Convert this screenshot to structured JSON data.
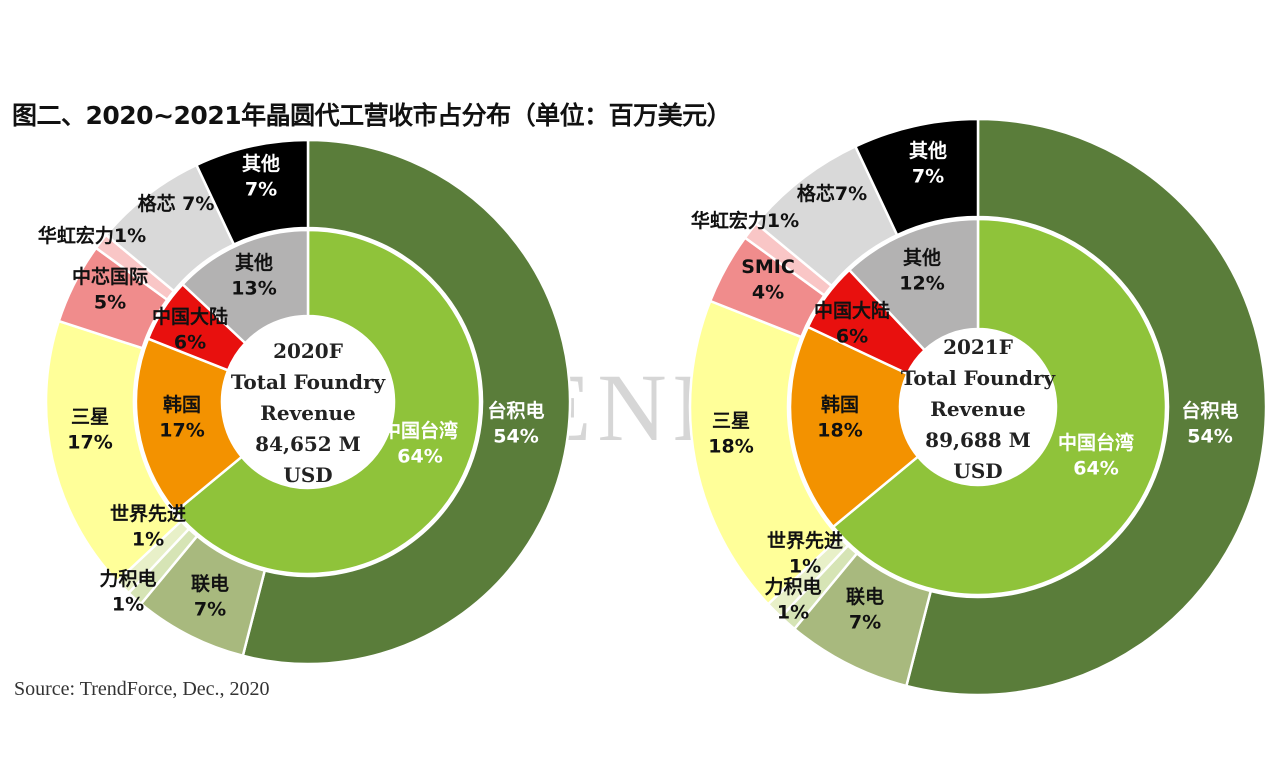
{
  "figure_title": "图二、2020~2021年晶圆代工营收市占分布（单位：百万美元）",
  "watermark": "TRENDFORCE",
  "source": "Source: TrendForce, Dec., 2020",
  "chart_data": [
    {
      "type": "donut",
      "center_lines": [
        "2020F",
        "Total Foundry",
        "Revenue",
        "84,652 M",
        "USD"
      ],
      "inner_ring": [
        {
          "name": "中国台湾",
          "value": 64,
          "label": "64%",
          "color": "#8fc33a"
        },
        {
          "name": "韩国",
          "value": 17,
          "label": "17%",
          "color": "#f39200"
        },
        {
          "name": "中国大陆",
          "value": 6,
          "label": "6%",
          "color": "#e8100e"
        },
        {
          "name": "其他",
          "value": 13,
          "label": "13%",
          "color": "#b3b2b2"
        }
      ],
      "outer_ring": [
        {
          "name": "台积电",
          "value": 54,
          "label": "54%",
          "color": "#5a7d3a"
        },
        {
          "name": "联电",
          "value": 7,
          "label": "7%",
          "color": "#a8b97e"
        },
        {
          "name": "力积电",
          "value": 1,
          "label": "1%",
          "color": "#d6e4b5"
        },
        {
          "name": "世界先进",
          "value": 1,
          "label": "1%",
          "color": "#e8f0c8"
        },
        {
          "name": "三星",
          "value": 17,
          "label": "17%",
          "color": "#ffff99"
        },
        {
          "name": "中芯国际",
          "value": 5,
          "label": "5%",
          "color": "#f08c8c"
        },
        {
          "name": "华虹宏力",
          "value": 1,
          "label": "1%",
          "color": "#f9c6c6"
        },
        {
          "name": "格芯",
          "value": 7,
          "label": "格芯 7%",
          "color": "#d9d9d9"
        },
        {
          "name": "其他",
          "value": 7,
          "label": "7%",
          "color": "#000000"
        }
      ]
    },
    {
      "type": "donut",
      "center_lines": [
        "2021F",
        "Total Foundry",
        "Revenue",
        "89,688 M",
        "USD"
      ],
      "inner_ring": [
        {
          "name": "中国台湾",
          "value": 64,
          "label": "64%",
          "color": "#8fc33a"
        },
        {
          "name": "韩国",
          "value": 18,
          "label": "18%",
          "color": "#f39200"
        },
        {
          "name": "中国大陆",
          "value": 6,
          "label": "6%",
          "color": "#e8100e"
        },
        {
          "name": "其他",
          "value": 12,
          "label": "12%",
          "color": "#b3b2b2"
        }
      ],
      "outer_ring": [
        {
          "name": "台积电",
          "value": 54,
          "label": "54%",
          "color": "#5a7d3a"
        },
        {
          "name": "联电",
          "value": 7,
          "label": "7%",
          "color": "#a8b97e"
        },
        {
          "name": "力积电",
          "value": 1,
          "label": "1%",
          "color": "#d6e4b5"
        },
        {
          "name": "世界先进",
          "value": 1,
          "label": "1%",
          "color": "#e8f0c8"
        },
        {
          "name": "三星",
          "value": 18,
          "label": "18%",
          "color": "#ffff99"
        },
        {
          "name": "SMIC",
          "value": 4,
          "label": "4%",
          "color": "#f08c8c"
        },
        {
          "name": "华虹宏力",
          "value": 1,
          "label": "1%",
          "color": "#f9c6c6"
        },
        {
          "name": "格芯",
          "value": 7,
          "label": "格芯7%",
          "color": "#d9d9d9"
        },
        {
          "name": "其他",
          "value": 7,
          "label": "7%",
          "color": "#000000"
        }
      ]
    }
  ]
}
